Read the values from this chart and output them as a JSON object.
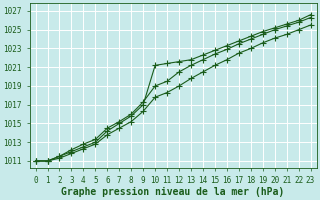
{
  "title": "Graphe pression niveau de la mer (hPa)",
  "bg_color": "#c8eaea",
  "grid_color": "#b0d8d8",
  "line_color": "#1a5c1a",
  "x_ticks": [
    0,
    1,
    2,
    3,
    4,
    5,
    6,
    7,
    8,
    9,
    10,
    11,
    12,
    13,
    14,
    15,
    16,
    17,
    18,
    19,
    20,
    21,
    22,
    23
  ],
  "y_ticks": [
    1011,
    1013,
    1015,
    1017,
    1019,
    1021,
    1023,
    1025,
    1027
  ],
  "ylim": [
    1010.2,
    1027.8
  ],
  "xlim": [
    -0.5,
    23.5
  ],
  "line1_y": [
    1011.0,
    1011.0,
    1011.5,
    1012.0,
    1012.5,
    1013.0,
    1014.2,
    1015.0,
    1015.8,
    1017.0,
    1021.2,
    1021.4,
    1021.6,
    1021.8,
    1022.3,
    1022.8,
    1023.3,
    1023.8,
    1024.3,
    1024.8,
    1025.2,
    1025.6,
    1026.0,
    1026.6
  ],
  "line2_y": [
    1011.0,
    1011.0,
    1011.5,
    1012.2,
    1012.8,
    1013.3,
    1014.5,
    1015.2,
    1016.0,
    1017.3,
    1019.0,
    1019.5,
    1020.5,
    1021.2,
    1021.8,
    1022.4,
    1022.9,
    1023.5,
    1024.0,
    1024.5,
    1025.0,
    1025.4,
    1025.8,
    1026.3
  ],
  "line3_y": [
    1011.0,
    1011.0,
    1011.3,
    1011.8,
    1012.3,
    1012.8,
    1013.8,
    1014.5,
    1015.2,
    1016.3,
    1017.8,
    1018.3,
    1019.0,
    1019.8,
    1020.5,
    1021.2,
    1021.8,
    1022.5,
    1023.0,
    1023.6,
    1024.1,
    1024.5,
    1025.0,
    1025.5
  ],
  "marker": "+",
  "markersize": 4,
  "linewidth": 0.8,
  "tick_fontsize": 5.5,
  "xlabel_fontsize": 7
}
